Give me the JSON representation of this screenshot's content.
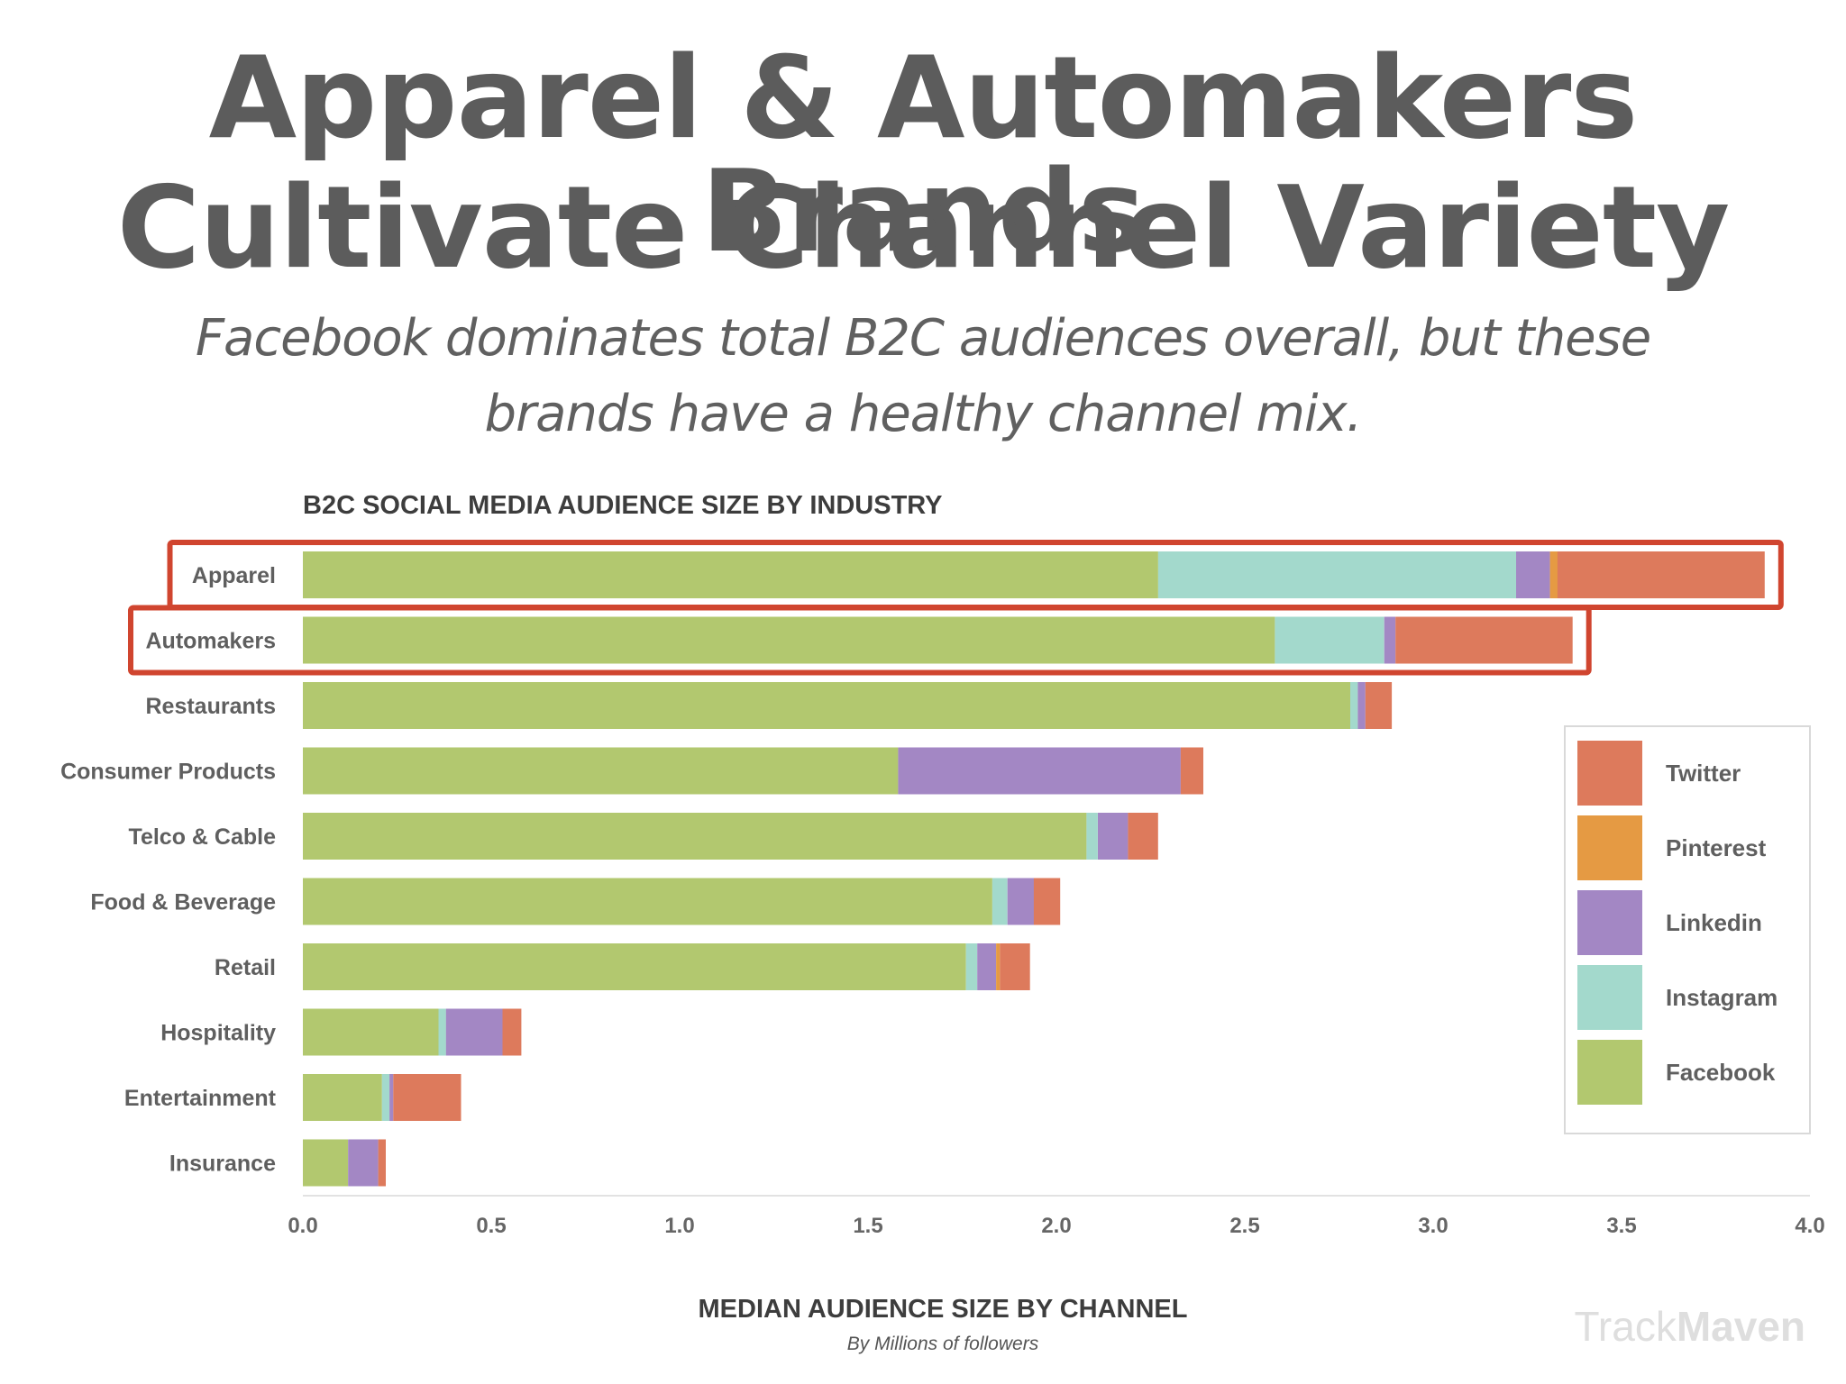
{
  "header": {
    "title_line1": "Apparel & Automakers Brands",
    "title_line2": "Cultivate Channel Variety",
    "subtitle_line1": "Facebook dominates total B2C audiences overall, but these",
    "subtitle_line2": "brands have a healthy channel mix."
  },
  "chart_data": {
    "type": "bar",
    "orientation": "horizontal",
    "stacked": true,
    "title": "B2C SOCIAL MEDIA AUDIENCE SIZE BY INDUSTRY",
    "xlabel": "MEDIAN AUDIENCE SIZE BY CHANNEL",
    "xsublabel": "By Millions of followers",
    "xlim": [
      0,
      4.0
    ],
    "xticks": [
      "0.0",
      "0.5",
      "1.0",
      "1.5",
      "2.0",
      "2.5",
      "3.0",
      "3.5",
      "4.0"
    ],
    "grid": false,
    "legend_position": "right",
    "categories": [
      "Apparel",
      "Automakers",
      "Restaurants",
      "Consumer Products",
      "Telco & Cable",
      "Food & Beverage",
      "Retail",
      "Hospitality",
      "Entertainment",
      "Insurance"
    ],
    "highlighted": [
      "Apparel",
      "Automakers"
    ],
    "highlight_color": "#d0452f",
    "series": [
      {
        "name": "Facebook",
        "color": "#b2c86f",
        "values": [
          2.27,
          2.58,
          2.78,
          1.58,
          2.08,
          1.83,
          1.76,
          0.36,
          0.21,
          0.12
        ]
      },
      {
        "name": "Instagram",
        "color": "#a3d9cc",
        "values": [
          0.95,
          0.29,
          0.02,
          0.0,
          0.03,
          0.04,
          0.03,
          0.02,
          0.02,
          0.0
        ]
      },
      {
        "name": "Linkedin",
        "color": "#a387c4",
        "values": [
          0.09,
          0.03,
          0.02,
          0.75,
          0.08,
          0.07,
          0.05,
          0.15,
          0.01,
          0.08
        ]
      },
      {
        "name": "Pinterest",
        "color": "#e59a43",
        "values": [
          0.02,
          0.0,
          0.0,
          0.0,
          0.0,
          0.0,
          0.01,
          0.0,
          0.0,
          0.0
        ]
      },
      {
        "name": "Twitter",
        "color": "#dd7a5c",
        "values": [
          0.55,
          0.47,
          0.07,
          0.06,
          0.08,
          0.07,
          0.08,
          0.05,
          0.18,
          0.02
        ]
      }
    ],
    "legend_order": [
      "Twitter",
      "Pinterest",
      "Linkedin",
      "Instagram",
      "Facebook"
    ]
  },
  "watermark": {
    "part1": "Track",
    "part2": "Maven"
  }
}
